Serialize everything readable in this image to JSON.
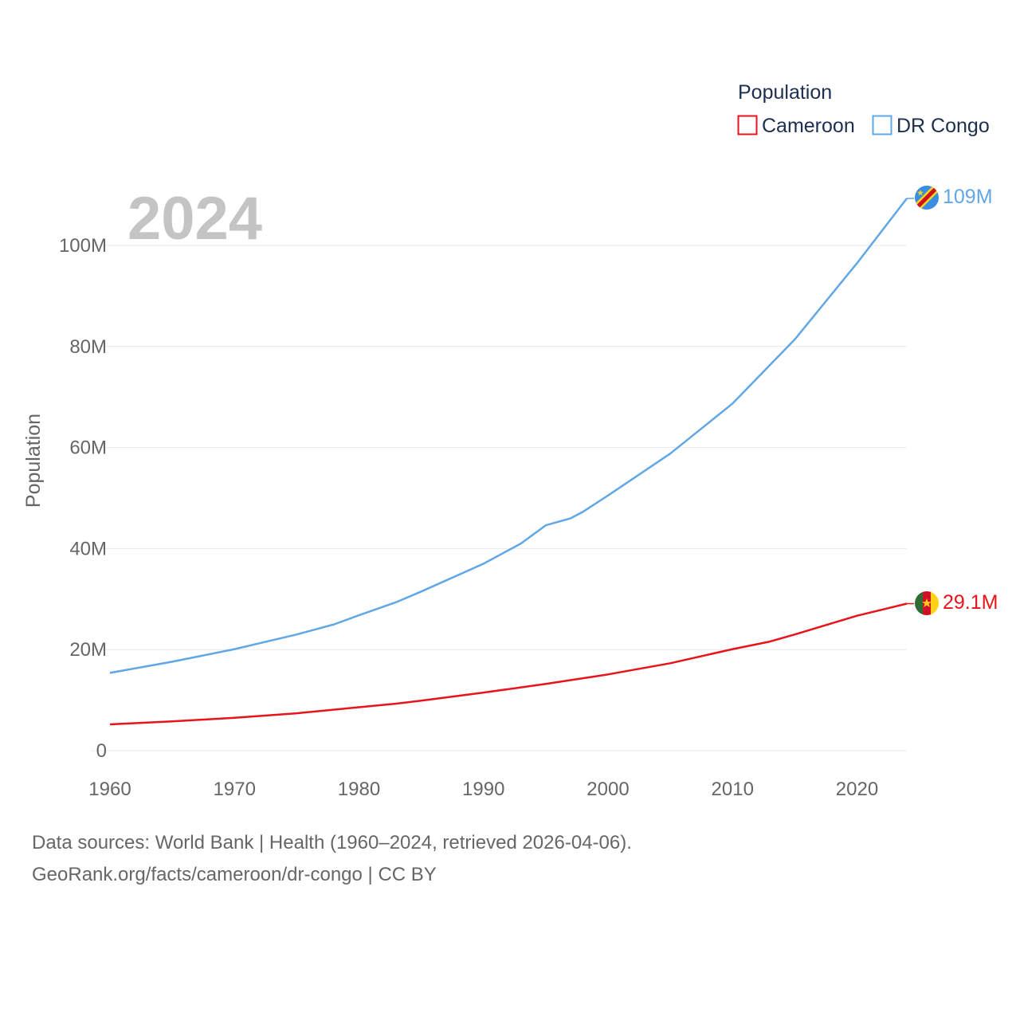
{
  "footer": {
    "line1": "Data sources: World Bank | Health (1960–2024, retrieved 2026-04-06).",
    "line2": "GeoRank.org/facts/cameroon/dr-congo | CC BY"
  },
  "chart_data": {
    "type": "line",
    "title": "",
    "year_label": "2024",
    "xlabel": "",
    "ylabel": "Population",
    "xlim": [
      1960,
      2024
    ],
    "ylim": [
      0,
      100000000
    ],
    "x_ticks": [
      1960,
      1970,
      1980,
      1990,
      2000,
      2010,
      2020
    ],
    "y_ticks": [
      {
        "value": 0,
        "label": "0"
      },
      {
        "value": 20000000,
        "label": "20M"
      },
      {
        "value": 40000000,
        "label": "40M"
      },
      {
        "value": 60000000,
        "label": "60M"
      },
      {
        "value": 80000000,
        "label": "80M"
      },
      {
        "value": 100000000,
        "label": "100M"
      }
    ],
    "grid": true,
    "legend": {
      "title": "Population",
      "position": "top-right"
    },
    "series": [
      {
        "name": "Cameroon",
        "color": "#e8141b",
        "end_label": "29.1M",
        "flag_icon": "cameroon-flag-icon",
        "points": [
          [
            1960,
            5200000
          ],
          [
            1965,
            5800000
          ],
          [
            1970,
            6500000
          ],
          [
            1975,
            7400000
          ],
          [
            1980,
            8600000
          ],
          [
            1983,
            9300000
          ],
          [
            1985,
            9900000
          ],
          [
            1990,
            11500000
          ],
          [
            1995,
            13200000
          ],
          [
            2000,
            15100000
          ],
          [
            2005,
            17300000
          ],
          [
            2010,
            20100000
          ],
          [
            2013,
            21600000
          ],
          [
            2015,
            23000000
          ],
          [
            2020,
            26700000
          ],
          [
            2024,
            29100000
          ]
        ]
      },
      {
        "name": "DR Congo",
        "color": "#62a7e5",
        "end_label": "109M",
        "flag_icon": "dr-congo-flag-icon",
        "points": [
          [
            1960,
            15400000
          ],
          [
            1965,
            17600000
          ],
          [
            1970,
            20100000
          ],
          [
            1975,
            23000000
          ],
          [
            1978,
            25000000
          ],
          [
            1980,
            26800000
          ],
          [
            1983,
            29400000
          ],
          [
            1985,
            31500000
          ],
          [
            1990,
            37000000
          ],
          [
            1993,
            41000000
          ],
          [
            1995,
            44600000
          ],
          [
            1997,
            46000000
          ],
          [
            1998,
            47300000
          ],
          [
            2000,
            50500000
          ],
          [
            2005,
            58800000
          ],
          [
            2010,
            68700000
          ],
          [
            2015,
            81400000
          ],
          [
            2020,
            96500000
          ],
          [
            2024,
            109300000
          ]
        ]
      }
    ]
  }
}
